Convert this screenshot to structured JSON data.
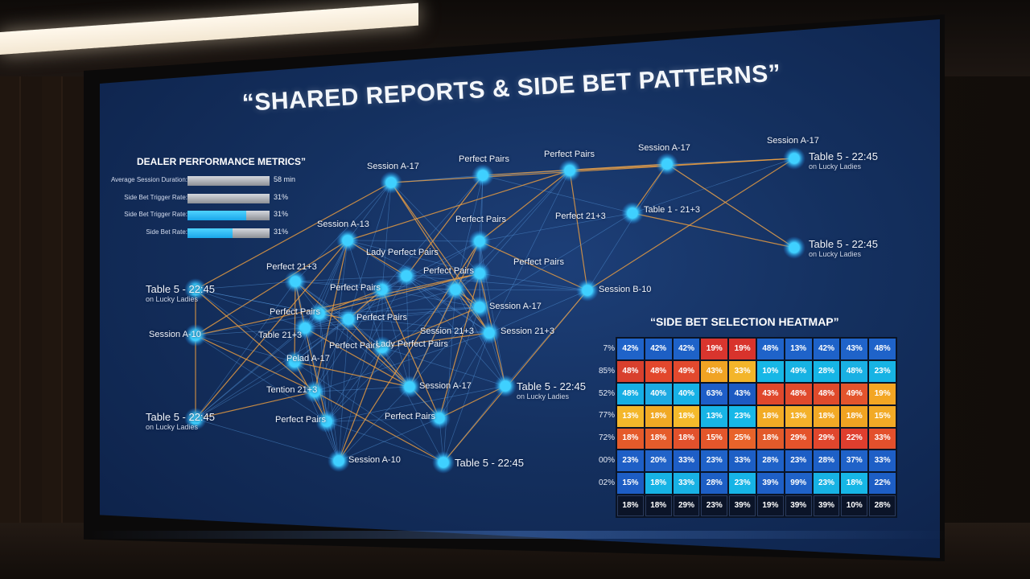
{
  "title": "“SHARED REPORTS & SIDE BET PATTERNS”",
  "metrics": {
    "title": "DEALER PERFORMANCE METRICS”",
    "rows": [
      {
        "label": "Average Session Duration:",
        "value": "58 min",
        "fill": 0.0
      },
      {
        "label": "Side Bet Trigger Rate:",
        "value": "31%",
        "fill": 0.0
      },
      {
        "label": "Side Bet Trigger Rate:",
        "value": "31%",
        "fill": 0.72
      },
      {
        "label": "Side Bet Rate:",
        "value": "31%",
        "fill": 0.55
      }
    ]
  },
  "network": {
    "nodes": [
      {
        "id": "n1",
        "label": "Session A-17",
        "sub": ""
      },
      {
        "id": "n2",
        "label": "Perfect Pairs",
        "sub": ""
      },
      {
        "id": "n3",
        "label": "Perfect Pairs",
        "sub": ""
      },
      {
        "id": "n4",
        "label": "Session A-17",
        "sub": ""
      },
      {
        "id": "n5",
        "label": "Session A-17",
        "sub": ""
      },
      {
        "id": "n6",
        "label": "Table 5 - 22:45",
        "sub": "on Lucky Ladies"
      },
      {
        "id": "n7",
        "label": "Session A-13",
        "sub": ""
      },
      {
        "id": "n8",
        "label": "Perfect Pairs",
        "sub": ""
      },
      {
        "id": "n9",
        "label": "Perfect 21+3",
        "sub": ""
      },
      {
        "id": "n10",
        "label": "Table 1 - 21+3",
        "sub": ""
      },
      {
        "id": "n11",
        "label": "Table 5 - 22:45",
        "sub": "on Lucky Ladies"
      },
      {
        "id": "n12",
        "label": "Lady Perfect Pairs",
        "sub": ""
      },
      {
        "id": "n13",
        "label": "Perfect 21+3",
        "sub": ""
      },
      {
        "id": "n14",
        "label": "Perfect Pairs",
        "sub": ""
      },
      {
        "id": "n15",
        "label": "Perfect Pairs",
        "sub": ""
      },
      {
        "id": "n16",
        "label": "Table 5 - 22:45",
        "sub": "on Lucky Ladies"
      },
      {
        "id": "n17",
        "label": "Perfect Pairs",
        "sub": ""
      },
      {
        "id": "n18",
        "label": "Session B-10",
        "sub": ""
      },
      {
        "id": "n19",
        "label": "Perfect Pairs",
        "sub": ""
      },
      {
        "id": "n20",
        "label": "Session A-17",
        "sub": ""
      },
      {
        "id": "n21",
        "label": "Session A-10",
        "sub": ""
      },
      {
        "id": "n22",
        "label": "Table 21+3",
        "sub": ""
      },
      {
        "id": "n23",
        "label": "Perfect Pairs",
        "sub": ""
      },
      {
        "id": "n24",
        "label": "Session 21+3",
        "sub": ""
      },
      {
        "id": "n25",
        "label": "Session 21+3",
        "sub": ""
      },
      {
        "id": "n26",
        "label": "Tention 21+3",
        "sub": ""
      },
      {
        "id": "n27",
        "label": "Session A-17",
        "sub": ""
      },
      {
        "id": "n28",
        "label": "Table 5 - 22:45",
        "sub": "on Lucky Ladies"
      },
      {
        "id": "n29",
        "label": "Perfect Pairs",
        "sub": ""
      },
      {
        "id": "n30",
        "label": "Table 5 - 22:45",
        "sub": "on Lucky Ladies"
      },
      {
        "id": "n31",
        "label": "Perfect Pairs",
        "sub": ""
      },
      {
        "id": "n32",
        "label": "Perfect Pairs",
        "sub": ""
      },
      {
        "id": "n33",
        "label": "Session A-10",
        "sub": ""
      },
      {
        "id": "n34",
        "label": "Table 5 - 22:45",
        "sub": ""
      },
      {
        "id": "n35",
        "label": "Pelad A-17",
        "sub": ""
      },
      {
        "id": "n36",
        "label": "Lady Perfect Pairs",
        "sub": ""
      }
    ]
  },
  "heatmap": {
    "title": "“SIDE BET SELECTION HEATMAP”",
    "row_labels": [
      "7%",
      "85%",
      "52%",
      "77%",
      "72%",
      "00%",
      "02%",
      ""
    ],
    "rows": [
      [
        {
          "v": "42%",
          "c": "#1f63c9"
        },
        {
          "v": "42%",
          "c": "#1d5fc4"
        },
        {
          "v": "42%",
          "c": "#1e62c8"
        },
        {
          "v": "19%",
          "c": "#d9352e"
        },
        {
          "v": "19%",
          "c": "#d8332c"
        },
        {
          "v": "48%",
          "c": "#1f63c9"
        },
        {
          "v": "13%",
          "c": "#1f63c9"
        },
        {
          "v": "42%",
          "c": "#1e62c8"
        },
        {
          "v": "43%",
          "c": "#1f63c9"
        },
        {
          "v": "48%",
          "c": "#1f63c9"
        }
      ],
      [
        {
          "v": "48%",
          "c": "#d8402d"
        },
        {
          "v": "48%",
          "c": "#e2472c"
        },
        {
          "v": "49%",
          "c": "#e2492e"
        },
        {
          "v": "43%",
          "c": "#f0a323"
        },
        {
          "v": "33%",
          "c": "#f3b52a"
        },
        {
          "v": "10%",
          "c": "#17b7e6"
        },
        {
          "v": "49%",
          "c": "#17b2e3"
        },
        {
          "v": "28%",
          "c": "#16b5e5"
        },
        {
          "v": "48%",
          "c": "#19b0e3"
        },
        {
          "v": "23%",
          "c": "#17b3e4"
        }
      ],
      [
        {
          "v": "48%",
          "c": "#16aee4"
        },
        {
          "v": "40%",
          "c": "#1da9e2"
        },
        {
          "v": "40%",
          "c": "#17b1e6"
        },
        {
          "v": "63%",
          "c": "#1e5ec8"
        },
        {
          "v": "43%",
          "c": "#1d5ac2"
        },
        {
          "v": "43%",
          "c": "#e0482c"
        },
        {
          "v": "48%",
          "c": "#e04a2c"
        },
        {
          "v": "48%",
          "c": "#df4a2c"
        },
        {
          "v": "49%",
          "c": "#e3542d"
        },
        {
          "v": "19%",
          "c": "#f3a623"
        }
      ],
      [
        {
          "v": "13%",
          "c": "#f4b72a"
        },
        {
          "v": "18%",
          "c": "#f1a924"
        },
        {
          "v": "18%",
          "c": "#f4ba2b"
        },
        {
          "v": "13%",
          "c": "#17b4e6"
        },
        {
          "v": "23%",
          "c": "#16b8e8"
        },
        {
          "v": "18%",
          "c": "#f2ab25"
        },
        {
          "v": "13%",
          "c": "#f4b12a"
        },
        {
          "v": "18%",
          "c": "#f2a925"
        },
        {
          "v": "18%",
          "c": "#f0a322"
        },
        {
          "v": "15%",
          "c": "#f2aa26"
        }
      ],
      [
        {
          "v": "18%",
          "c": "#e55a2a"
        },
        {
          "v": "18%",
          "c": "#e55c2b"
        },
        {
          "v": "18%",
          "c": "#e2512c"
        },
        {
          "v": "15%",
          "c": "#e4562b"
        },
        {
          "v": "25%",
          "c": "#e8632a"
        },
        {
          "v": "18%",
          "c": "#e25a2a"
        },
        {
          "v": "29%",
          "c": "#e4532b"
        },
        {
          "v": "29%",
          "c": "#e0462d"
        },
        {
          "v": "22%",
          "c": "#df3e2e"
        },
        {
          "v": "33%",
          "c": "#e3502c"
        }
      ],
      [
        {
          "v": "23%",
          "c": "#1e5fc6"
        },
        {
          "v": "20%",
          "c": "#2163c8"
        },
        {
          "v": "33%",
          "c": "#1e5ec6"
        },
        {
          "v": "23%",
          "c": "#1f62c8"
        },
        {
          "v": "33%",
          "c": "#1d5fc5"
        },
        {
          "v": "28%",
          "c": "#1f62c8"
        },
        {
          "v": "23%",
          "c": "#1d5ec5"
        },
        {
          "v": "28%",
          "c": "#1e60c6"
        },
        {
          "v": "37%",
          "c": "#1f62c8"
        },
        {
          "v": "33%",
          "c": "#1e5fc6"
        }
      ],
      [
        {
          "v": "15%",
          "c": "#1d5dc4"
        },
        {
          "v": "18%",
          "c": "#16b3e5"
        },
        {
          "v": "33%",
          "c": "#18b1e4"
        },
        {
          "v": "28%",
          "c": "#1d5fc5"
        },
        {
          "v": "23%",
          "c": "#16b4e6"
        },
        {
          "v": "39%",
          "c": "#1e5fc6"
        },
        {
          "v": "99%",
          "c": "#1f62c8"
        },
        {
          "v": "23%",
          "c": "#17b2e4"
        },
        {
          "v": "18%",
          "c": "#16b6e6"
        },
        {
          "v": "22%",
          "c": "#1d5ec5"
        }
      ],
      [
        {
          "v": "18%",
          "c": "#0b1428"
        },
        {
          "v": "18%",
          "c": "#0b1428"
        },
        {
          "v": "29%",
          "c": "#0b1428"
        },
        {
          "v": "23%",
          "c": "#0b1428"
        },
        {
          "v": "39%",
          "c": "#0b1428"
        },
        {
          "v": "19%",
          "c": "#0b1428"
        },
        {
          "v": "39%",
          "c": "#0b1428"
        },
        {
          "v": "39%",
          "c": "#0b1428"
        },
        {
          "v": "10%",
          "c": "#0b1428"
        },
        {
          "v": "28%",
          "c": "#0b1428"
        }
      ]
    ]
  },
  "colors": {
    "node": "#3fd0ff",
    "edge_blue": "#5aa0e6",
    "edge_orange": "#f0a040"
  }
}
